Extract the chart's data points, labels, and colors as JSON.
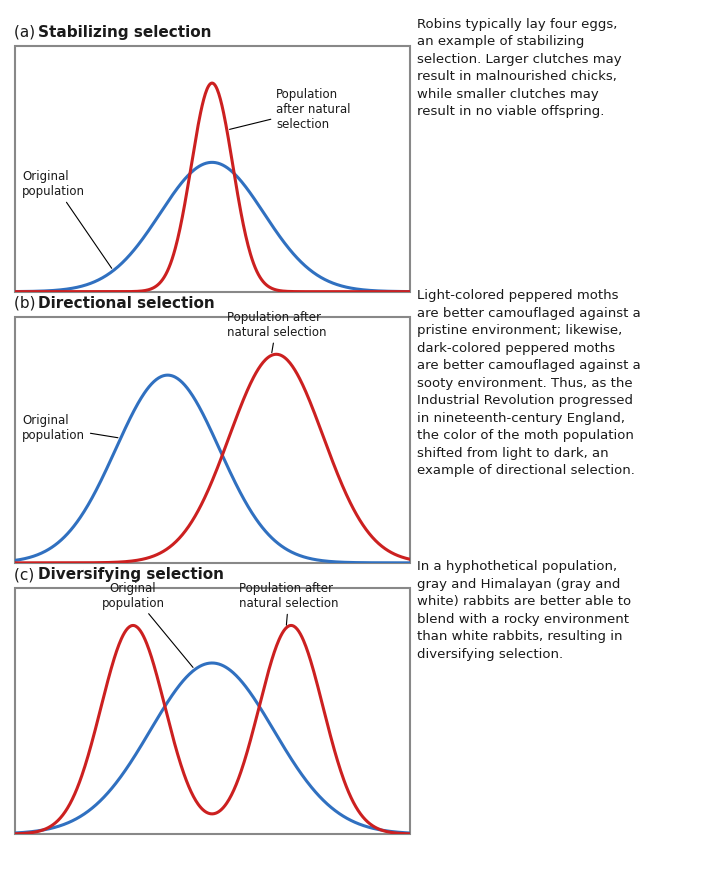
{
  "background_color": "#ffffff",
  "panel_border_color": "#888888",
  "blue_color": "#3070c0",
  "red_color": "#cc2020",
  "text_color": "#1a1a1a",
  "panel_a_title_plain": "(a) ",
  "panel_a_title_bold": "Stabilizing selection",
  "panel_a_orig_label": "Original\npopulation",
  "panel_a_after_label": "Population\nafter natural\nselection",
  "panel_a_desc": "Robins typically lay four eggs,\nan example of stabilizing\nselection. Larger clutches may\nresult in malnourished chicks,\nwhile smaller clutches may\nresult in no viable offspring.",
  "panel_b_title_plain": "(b) ",
  "panel_b_title_bold": "Directional selection",
  "panel_b_orig_label": "Original\npopulation",
  "panel_b_after_label": "Population after\nnatural selection",
  "panel_b_desc": "Light-colored peppered moths\nare better camouflaged against a\npristine environment; likewise,\ndark-colored peppered moths\nare better camouflaged against a\nsooty environment. Thus, as the\nIndustrial Revolution progressed\nin nineteenth-century England,\nthe color of the moth population\nshifted from light to dark, an\nexample of directional selection.",
  "panel_c_title_plain": "(c) ",
  "panel_c_title_bold": "Diversifying selection",
  "panel_c_orig_label": "Original\npopulation",
  "panel_c_after_label": "Population after\nnatural selection",
  "panel_c_desc": "In a hyphothetical population,\ngray and Himalayan (gray and\nwhite) rabbits are better able to\nblend with a rocky environment\nthan white rabbits, resulting in\ndiversifying selection.",
  "lw": 2.2,
  "fontsize_title": 11,
  "fontsize_label": 8.5,
  "fontsize_desc": 9.5
}
